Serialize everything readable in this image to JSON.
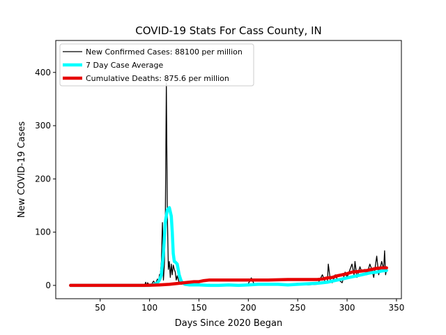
{
  "chart_data": {
    "type": "line",
    "title": "COVID-19 Stats For Cass County, IN",
    "xlabel": "Days Since 2020 Began",
    "ylabel": "New COVID-19 Cases",
    "xlim": [
      5,
      355
    ],
    "ylim": [
      -25,
      460
    ],
    "xticks": [
      50,
      100,
      150,
      200,
      250,
      300,
      350
    ],
    "yticks": [
      0,
      100,
      200,
      300,
      400
    ],
    "legend_position": "top-left",
    "grid": false,
    "series": [
      {
        "name": "New Confirmed Cases: 88100 per million",
        "color": "#000000",
        "x": [
          20,
          40,
          60,
          80,
          95,
          96,
          97,
          98,
          100,
          102,
          104,
          106,
          108,
          109,
          110,
          111,
          112,
          113,
          114,
          115,
          116,
          117,
          118,
          119,
          120,
          121,
          122,
          123,
          124,
          125,
          126,
          127,
          128,
          130,
          132,
          134,
          136,
          138,
          140,
          145,
          150,
          155,
          160,
          170,
          180,
          190,
          200,
          203,
          206,
          210,
          220,
          230,
          240,
          250,
          260,
          270,
          275,
          278,
          280,
          281,
          283,
          285,
          288,
          290,
          293,
          295,
          298,
          300,
          303,
          305,
          307,
          308,
          310,
          313,
          315,
          318,
          320,
          323,
          325,
          327,
          330,
          332,
          335,
          337,
          338,
          339,
          340
        ],
        "y": [
          0,
          0,
          0,
          0,
          0,
          6,
          0,
          5,
          0,
          2,
          8,
          3,
          12,
          5,
          20,
          22,
          45,
          118,
          10,
          40,
          130,
          380,
          135,
          30,
          45,
          15,
          40,
          20,
          38,
          30,
          25,
          10,
          18,
          5,
          2,
          3,
          1,
          0,
          2,
          0,
          1,
          0,
          2,
          0,
          1,
          0,
          3,
          14,
          2,
          0,
          3,
          0,
          2,
          4,
          1,
          2,
          20,
          6,
          5,
          40,
          10,
          5,
          20,
          12,
          8,
          5,
          25,
          15,
          30,
          40,
          20,
          45,
          15,
          35,
          25,
          30,
          20,
          40,
          30,
          15,
          55,
          20,
          45,
          30,
          65,
          20,
          30
        ]
      },
      {
        "name": "7 Day Case Average",
        "color": "#00ffff",
        "x": [
          20,
          60,
          90,
          100,
          105,
          108,
          110,
          112,
          114,
          116,
          118,
          120,
          122,
          123,
          124,
          125,
          126,
          128,
          130,
          132,
          134,
          136,
          140,
          150,
          160,
          170,
          180,
          190,
          200,
          210,
          220,
          230,
          240,
          250,
          260,
          270,
          275,
          280,
          285,
          290,
          295,
          300,
          305,
          310,
          315,
          320,
          325,
          330,
          335,
          340
        ],
        "y": [
          0,
          0,
          0,
          0,
          2,
          5,
          10,
          20,
          60,
          120,
          142,
          146,
          130,
          100,
          60,
          45,
          44,
          40,
          20,
          8,
          4,
          2,
          1,
          1,
          0,
          0,
          1,
          0,
          1,
          2,
          2,
          2,
          1,
          2,
          3,
          4,
          5,
          6,
          8,
          10,
          12,
          14,
          16,
          18,
          20,
          22,
          24,
          25,
          27,
          28
        ]
      },
      {
        "name": "Cumulative Deaths: 875.6 per million",
        "color": "#e60000",
        "x": [
          20,
          60,
          95,
          110,
          120,
          125,
          130,
          135,
          140,
          145,
          150,
          155,
          160,
          170,
          180,
          200,
          220,
          240,
          260,
          270,
          275,
          280,
          285,
          290,
          295,
          300,
          305,
          310,
          315,
          320,
          325,
          330,
          335,
          340
        ],
        "y": [
          0,
          0,
          0,
          1,
          2,
          3,
          4,
          5,
          6,
          7,
          7,
          9,
          10,
          10,
          10,
          10,
          10,
          11,
          11,
          11,
          12,
          14,
          15,
          18,
          20,
          22,
          25,
          26,
          27,
          28,
          30,
          32,
          33,
          33
        ]
      }
    ]
  }
}
